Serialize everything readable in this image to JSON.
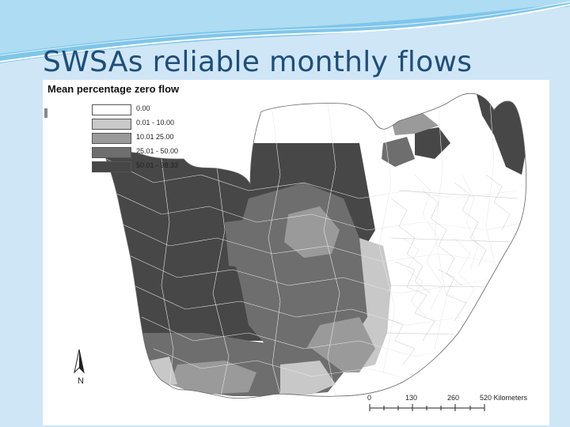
{
  "slide": {
    "title": "SWSAs reliable monthly flows"
  },
  "legend": {
    "title": "Mean percentage zero flow",
    "items": [
      {
        "label": "0.00",
        "color": "#ffffff"
      },
      {
        "label": "0.01 - 10.00",
        "color": "#c8c8c8"
      },
      {
        "label": "10.01   25.00",
        "color": "#9a9a9a"
      },
      {
        "label": "25.01 - 50.00",
        "color": "#6e6e6e"
      },
      {
        "label": "50.01 - 98.33",
        "color": "#474747"
      }
    ]
  },
  "north_arrow": {
    "letter": "N",
    "icon": "north-arrow-icon"
  },
  "scale_bar": {
    "labels": [
      "0",
      "130",
      "260",
      "520 Kilometers"
    ]
  },
  "colors": {
    "title": "#1f4e79",
    "background": "#cfe6f6",
    "map_frame": "#ffffff",
    "region_border": "#e8e8e8"
  }
}
